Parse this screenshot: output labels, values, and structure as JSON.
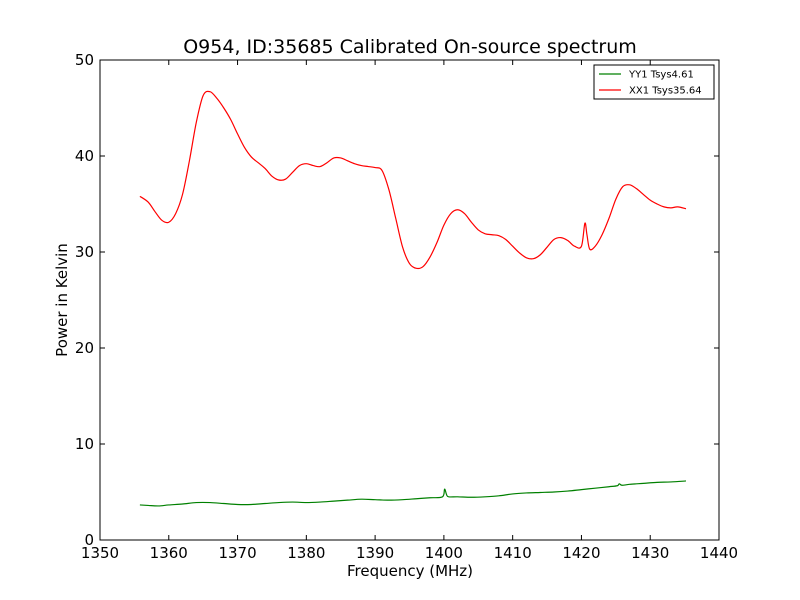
{
  "chart_data": {
    "type": "line",
    "title": "O954, ID:35685 Calibrated On-source spectrum",
    "xlabel": "Frequency (MHz)",
    "ylabel": "Power in Kelvin",
    "xlim": [
      1350,
      1440
    ],
    "ylim": [
      0,
      50
    ],
    "xticks": [
      1350,
      1360,
      1370,
      1380,
      1390,
      1400,
      1410,
      1420,
      1430,
      1440
    ],
    "yticks": [
      0,
      10,
      20,
      30,
      40,
      50
    ],
    "grid": false,
    "legend_position": "upper right",
    "series": [
      {
        "name": "YY1 Tsys4.61",
        "color": "#008000",
        "x": [
          1355.8,
          1357,
          1358.5,
          1360,
          1362,
          1364,
          1366,
          1368,
          1370,
          1372,
          1374,
          1376,
          1378,
          1380,
          1382,
          1384,
          1386,
          1388,
          1390,
          1392,
          1394,
          1396,
          1398,
          1399.8,
          1400.1,
          1400.4,
          1400.7,
          1402,
          1404,
          1406,
          1408,
          1410,
          1412,
          1414,
          1416,
          1418,
          1420,
          1422,
          1424,
          1425.2,
          1425.5,
          1425.9,
          1427,
          1429,
          1431,
          1433,
          1435.2
        ],
        "y": [
          3.65,
          3.6,
          3.55,
          3.65,
          3.75,
          3.9,
          3.9,
          3.8,
          3.7,
          3.7,
          3.8,
          3.9,
          3.95,
          3.9,
          3.95,
          4.05,
          4.15,
          4.25,
          4.2,
          4.15,
          4.2,
          4.3,
          4.4,
          4.5,
          5.3,
          4.7,
          4.5,
          4.5,
          4.45,
          4.5,
          4.6,
          4.8,
          4.9,
          4.95,
          5.0,
          5.1,
          5.25,
          5.4,
          5.55,
          5.65,
          5.85,
          5.7,
          5.8,
          5.9,
          6.0,
          6.05,
          6.15
        ]
      },
      {
        "name": "XX1 Tsys35.64",
        "color": "#ff0000",
        "x": [
          1355.8,
          1357,
          1358,
          1359,
          1360,
          1361,
          1362,
          1363,
          1364,
          1365,
          1366,
          1367,
          1368,
          1369,
          1370,
          1371,
          1372,
          1373,
          1374,
          1375,
          1376,
          1377,
          1378,
          1379,
          1380,
          1381,
          1382,
          1383,
          1384,
          1385,
          1386,
          1387,
          1388,
          1389,
          1390,
          1391,
          1392,
          1393,
          1394,
          1395,
          1396,
          1397,
          1398,
          1399,
          1400,
          1401,
          1402,
          1403,
          1404,
          1405,
          1406,
          1407,
          1408,
          1409,
          1410,
          1411,
          1412,
          1413,
          1414,
          1415,
          1416,
          1417,
          1418,
          1419,
          1420,
          1420.5,
          1420.8,
          1421.2,
          1422,
          1423,
          1424,
          1425,
          1426,
          1427,
          1428,
          1429,
          1430,
          1431,
          1432,
          1433,
          1434,
          1435.2
        ],
        "y": [
          35.8,
          35.2,
          34.2,
          33.3,
          33.1,
          34.0,
          36.0,
          39.5,
          43.5,
          46.3,
          46.7,
          46.0,
          45.0,
          43.8,
          42.3,
          40.9,
          39.9,
          39.3,
          38.7,
          37.9,
          37.5,
          37.6,
          38.3,
          39.0,
          39.2,
          39.0,
          38.9,
          39.3,
          39.8,
          39.8,
          39.5,
          39.2,
          39.0,
          38.9,
          38.8,
          38.5,
          36.5,
          33.5,
          30.5,
          28.8,
          28.3,
          28.5,
          29.5,
          31.0,
          32.8,
          34.0,
          34.4,
          34.0,
          33.1,
          32.3,
          31.9,
          31.8,
          31.7,
          31.3,
          30.6,
          29.9,
          29.4,
          29.3,
          29.7,
          30.5,
          31.3,
          31.5,
          31.2,
          30.6,
          30.6,
          33.0,
          31.8,
          30.3,
          30.6,
          31.8,
          33.5,
          35.5,
          36.8,
          37.0,
          36.6,
          36.0,
          35.4,
          35.0,
          34.7,
          34.6,
          34.7,
          34.5
        ]
      }
    ]
  }
}
